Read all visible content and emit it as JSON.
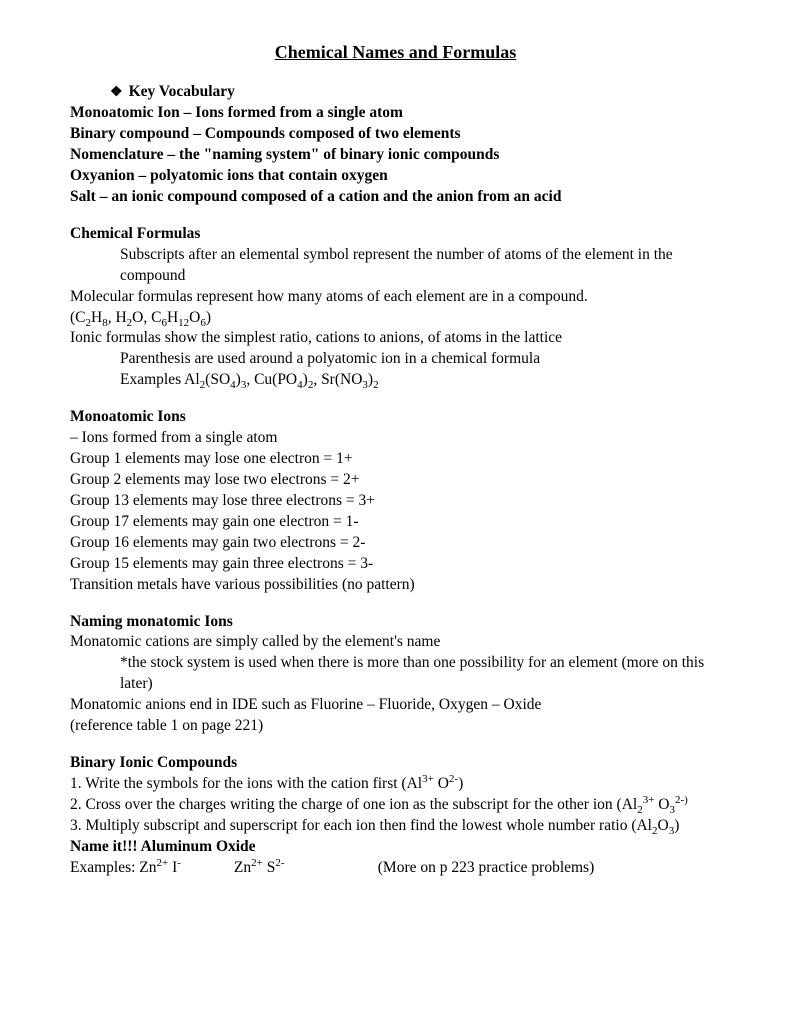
{
  "title": "Chemical Names and Formulas",
  "keyVocabHeading": "Key Vocabulary",
  "vocab": [
    "Monoatomic Ion – Ions formed from a single atom",
    "Binary compound – Compounds composed of two elements",
    "Nomenclature – the \"naming system\" of binary ionic compounds",
    "Oxyanion – polyatomic ions that contain oxygen",
    "Salt – an ionic compound composed of a cation and the anion from an acid"
  ],
  "chemFormulasHeading": "Chemical Formulas",
  "chemFormulas": {
    "line1": "Subscripts after an elemental symbol represent the number of atoms of the element in the compound",
    "line2": "Molecular formulas represent how many atoms of each element are in a compound.",
    "line4": "Ionic formulas show the simplest ratio, cations to anions, of atoms in the lattice",
    "line5": "Parenthesis are used around a polyatomic ion in a chemical formula"
  },
  "monoIonsHeading": "Monoatomic Ions",
  "monoIons": [
    "– Ions formed from a single atom",
    "Group 1 elements may lose one electron = 1+",
    "Group 2 elements may lose two electrons = 2+",
    "Group 13 elements may lose three electrons = 3+",
    "Group 17 elements may gain one electron = 1-",
    "Group 16 elements may gain two electrons = 2-",
    "Group 15 elements may gain three electrons = 3-",
    "Transition metals have various possibilities (no pattern)"
  ],
  "namingMonoHeading": "Naming monatomic Ions",
  "namingMono": {
    "line1": "Monatomic cations are simply called by the element's name",
    "line2": "*the stock system is used when there is more than one possibility for an element (more on this later)",
    "line3": "Monatomic anions end in IDE such as Fluorine – Fluoride, Oxygen – Oxide",
    "line4": "(reference table 1 on page 221)"
  },
  "binaryHeading": "Binary Ionic Compounds",
  "binary": {
    "step2": "2.  Cross over the charges writing the charge of one ion as the subscript for the other",
    "nameIt": "Name it!!! Aluminum Oxide",
    "moreOn": "(More on p 223 practice problems)"
  }
}
